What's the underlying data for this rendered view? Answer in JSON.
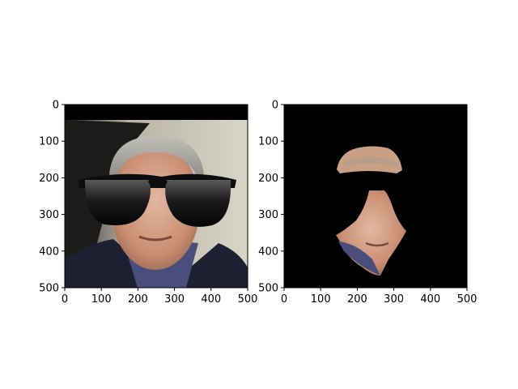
{
  "chart_data": [
    {
      "type": "image",
      "title": "",
      "xlabel": "",
      "ylabel": "",
      "xlim": [
        0,
        500
      ],
      "ylim": [
        500,
        0
      ],
      "xticks": [
        0,
        100,
        200,
        300,
        400,
        500
      ],
      "yticks": [
        0,
        100,
        200,
        300,
        400,
        500
      ],
      "y_inverted": true,
      "content": "photo-with-sunglasses-overlay"
    },
    {
      "type": "image",
      "title": "",
      "xlabel": "",
      "ylabel": "",
      "xlim": [
        0,
        500
      ],
      "ylim": [
        500,
        0
      ],
      "xticks": [
        0,
        100,
        200,
        300,
        400,
        500
      ],
      "yticks": [
        0,
        100,
        200,
        300,
        400,
        500
      ],
      "y_inverted": true,
      "content": "segmented-face-mask"
    }
  ]
}
